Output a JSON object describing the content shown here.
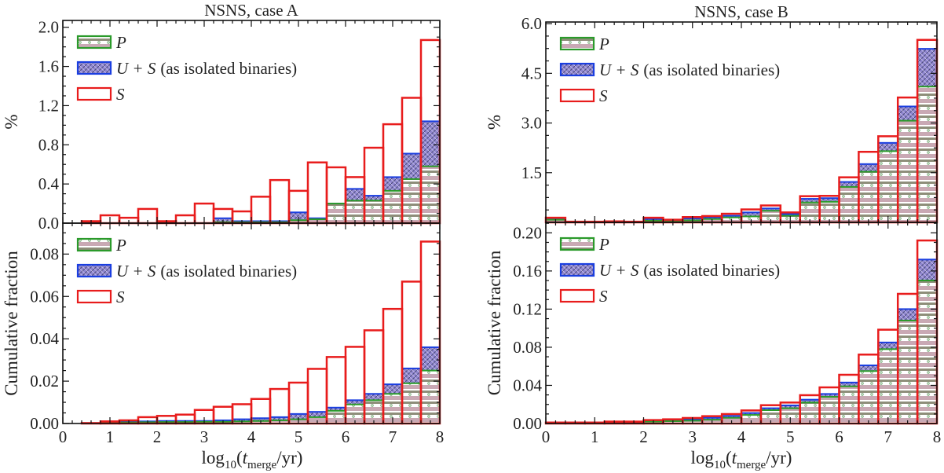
{
  "legend": {
    "p": "P",
    "us": "U + S",
    "us_note": "(as isolated binaries)",
    "s": "S"
  },
  "xlabel_parts": {
    "log": "log",
    "base": "10",
    "open": "(",
    "t": "t",
    "sub": "merge",
    "close": "/yr)"
  },
  "colors": {
    "p": "#2a9a2a",
    "us": "#1a3ee0",
    "s": "#e81c1c",
    "p_fill": "#c9a9b4",
    "us_fill": "#7f73c2"
  },
  "chart_data": [
    {
      "type": "bar",
      "title": "NSNS, case A",
      "ylabel": "%",
      "ylim": [
        0,
        2.07
      ],
      "xlim": [
        0,
        8
      ],
      "yticks": [
        0,
        0.4,
        0.8,
        1.2,
        1.6,
        2.0
      ],
      "ytick_labels": [
        "0.0",
        "0.4",
        "0.8",
        "1.2",
        "1.6",
        "2.0"
      ],
      "xtick_labels": [],
      "bin_edges": [
        0,
        0.4,
        0.8,
        1.2,
        1.6,
        2.0,
        2.4,
        2.8,
        3.2,
        3.6,
        4.0,
        4.4,
        4.8,
        5.2,
        5.6,
        6.0,
        6.4,
        6.8,
        7.2,
        7.6,
        8.0
      ],
      "series": [
        {
          "name": "S",
          "values": [
            0,
            0.02,
            0.08,
            0.055,
            0.145,
            0.02,
            0.08,
            0.2,
            0.145,
            0.12,
            0.27,
            0.44,
            0.33,
            0.62,
            0.57,
            0.47,
            0.77,
            1.01,
            1.28,
            1.87
          ]
        },
        {
          "name": "U + S (as isolated binaries)",
          "values": [
            0,
            0,
            0,
            0,
            0,
            0,
            0,
            0,
            0.05,
            0.02,
            0.02,
            0.02,
            0.11,
            0.05,
            0.2,
            0.35,
            0.28,
            0.47,
            0.71,
            1.04
          ]
        },
        {
          "name": "P",
          "values": [
            0,
            0,
            0,
            0,
            0,
            0,
            0,
            0,
            0.01,
            0.01,
            0.01,
            0.01,
            0.03,
            0.04,
            0.2,
            0.23,
            0.23,
            0.33,
            0.45,
            0.58
          ]
        }
      ]
    },
    {
      "type": "bar",
      "title": "NSNS, case B",
      "ylabel": "%",
      "ylim": [
        0,
        6.05
      ],
      "xlim": [
        0,
        8
      ],
      "yticks": [
        1.5,
        3.0,
        4.5,
        6.0
      ],
      "ytick_labels": [
        "1.5",
        "3.0",
        "4.5",
        "6.0"
      ],
      "xtick_labels": [],
      "bin_edges": [
        0,
        0.4,
        0.8,
        1.2,
        1.6,
        2.0,
        2.4,
        2.8,
        3.2,
        3.6,
        4.0,
        4.4,
        4.8,
        5.2,
        5.6,
        6.0,
        6.4,
        6.8,
        7.2,
        7.6,
        8.0
      ],
      "series": [
        {
          "name": "S",
          "values": [
            0.14,
            0.02,
            0.02,
            0.03,
            0.02,
            0.14,
            0.08,
            0.16,
            0.19,
            0.26,
            0.39,
            0.51,
            0.3,
            0.79,
            0.8,
            1.36,
            2.13,
            2.6,
            3.77,
            5.51
          ]
        },
        {
          "name": "U + S (as isolated binaries)",
          "values": [
            0.1,
            0.01,
            0.01,
            0.02,
            0.01,
            0.1,
            0.06,
            0.12,
            0.15,
            0.2,
            0.3,
            0.42,
            0.25,
            0.71,
            0.73,
            1.22,
            1.76,
            2.4,
            3.5,
            5.24
          ]
        },
        {
          "name": "P",
          "values": [
            0.08,
            0,
            0,
            0.01,
            0,
            0.05,
            0.03,
            0.06,
            0.1,
            0.15,
            0.18,
            0.35,
            0.2,
            0.6,
            0.62,
            1.07,
            1.53,
            2.15,
            3.07,
            4.1
          ]
        }
      ]
    },
    {
      "type": "bar",
      "title": "",
      "ylabel": "Cumulative fraction",
      "ylim": [
        0,
        0.0946
      ],
      "xlim": [
        0,
        8
      ],
      "yticks": [
        0,
        0.02,
        0.04,
        0.06,
        0.08
      ],
      "ytick_labels": [
        "0.00",
        "0.02",
        "0.04",
        "0.06",
        "0.08"
      ],
      "xtick_labels": [
        "0",
        "1",
        "2",
        "3",
        "4",
        "5",
        "6",
        "7",
        "8"
      ],
      "bin_edges": [
        0,
        0.4,
        0.8,
        1.2,
        1.6,
        2.0,
        2.4,
        2.8,
        3.2,
        3.6,
        4.0,
        4.4,
        4.8,
        5.2,
        5.6,
        6.0,
        6.4,
        6.8,
        7.2,
        7.6,
        8.0
      ],
      "series": [
        {
          "name": "S",
          "values": [
            0,
            0.0002,
            0.001,
            0.0015,
            0.003,
            0.0036,
            0.0042,
            0.0064,
            0.0079,
            0.0091,
            0.0116,
            0.0163,
            0.0193,
            0.0258,
            0.0314,
            0.0362,
            0.044,
            0.0541,
            0.067,
            0.0859
          ]
        },
        {
          "name": "U + S (as isolated binaries)",
          "values": [
            0,
            0,
            0.0005,
            0.0008,
            0.001,
            0.0012,
            0.0012,
            0.0012,
            0.0015,
            0.002,
            0.0025,
            0.003,
            0.0045,
            0.0055,
            0.0075,
            0.011,
            0.014,
            0.0185,
            0.026,
            0.036
          ]
        },
        {
          "name": "P",
          "values": [
            0,
            0,
            0.0003,
            0.0005,
            0.0006,
            0.0007,
            0.0007,
            0.0008,
            0.0008,
            0.001,
            0.0012,
            0.0015,
            0.002,
            0.003,
            0.006,
            0.009,
            0.011,
            0.014,
            0.019,
            0.025
          ]
        }
      ]
    },
    {
      "type": "bar",
      "title": "",
      "ylabel": "Cumulative fraction",
      "ylim": [
        0,
        0.211
      ],
      "xlim": [
        0,
        8
      ],
      "yticks": [
        0,
        0.04,
        0.08,
        0.12,
        0.16,
        0.2
      ],
      "ytick_labels": [
        "0.00",
        "0.04",
        "0.08",
        "0.12",
        "0.16",
        "0.20"
      ],
      "xtick_labels": [
        "0",
        "1",
        "2",
        "3",
        "4",
        "5",
        "6",
        "7",
        "8"
      ],
      "bin_edges": [
        0,
        0.4,
        0.8,
        1.2,
        1.6,
        2.0,
        2.4,
        2.8,
        3.2,
        3.6,
        4.0,
        4.4,
        4.8,
        5.2,
        5.6,
        6.0,
        6.4,
        6.8,
        7.2,
        7.6,
        8.0
      ],
      "series": [
        {
          "name": "S",
          "values": [
            0.001,
            0.001,
            0.001,
            0.002,
            0.002,
            0.0036,
            0.0044,
            0.0058,
            0.0077,
            0.0099,
            0.0137,
            0.0192,
            0.022,
            0.0297,
            0.0379,
            0.0511,
            0.0723,
            0.0984,
            0.136,
            0.192
          ]
        },
        {
          "name": "U + S (as isolated binaries)",
          "values": [
            0.001,
            0.001,
            0.001,
            0.0015,
            0.0015,
            0.003,
            0.0035,
            0.0045,
            0.006,
            0.008,
            0.011,
            0.016,
            0.019,
            0.025,
            0.031,
            0.043,
            0.061,
            0.085,
            0.12,
            0.172
          ]
        },
        {
          "name": "P",
          "values": [
            0.0005,
            0.0005,
            0.0005,
            0.001,
            0.001,
            0.002,
            0.0025,
            0.003,
            0.004,
            0.006,
            0.009,
            0.014,
            0.016,
            0.022,
            0.028,
            0.039,
            0.055,
            0.078,
            0.108,
            0.15
          ]
        }
      ]
    }
  ]
}
